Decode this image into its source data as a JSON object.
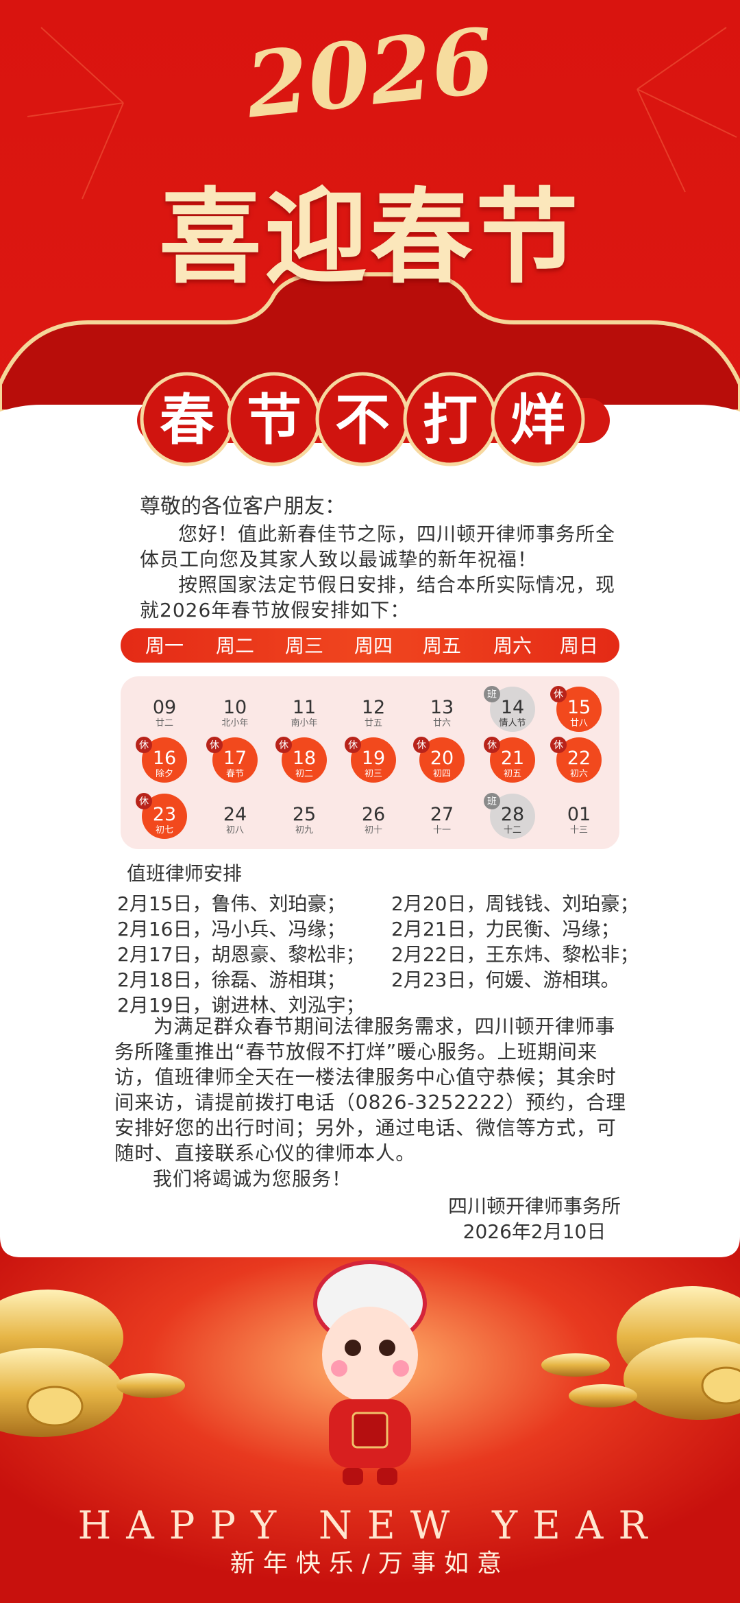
{
  "header": {
    "year": "2026",
    "title": "喜迎春节",
    "banner": [
      "春",
      "节",
      "不",
      "打",
      "烊"
    ]
  },
  "greeting": "尊敬的各位客户朋友：",
  "intro": [
    "您好！值此新春佳节之际，四川顿开律师事务所全体员工向您及其家人致以最诚挚的新年祝福！",
    "按照国家法定节假日安排，结合本所实际情况，现就2026年春节放假安排如下："
  ],
  "calendar": {
    "weekdays": [
      "周一",
      "周二",
      "周三",
      "周四",
      "周五",
      "周六",
      "周日"
    ],
    "days": [
      {
        "day": "09",
        "lunar": "廿二"
      },
      {
        "day": "10",
        "lunar": "北小年"
      },
      {
        "day": "11",
        "lunar": "南小年"
      },
      {
        "day": "12",
        "lunar": "廿五"
      },
      {
        "day": "13",
        "lunar": "廿六"
      },
      {
        "day": "14",
        "lunar": "情人节",
        "badge": "班",
        "color": "#d9d6d6",
        "badge_color": "#8a8a8a",
        "text_color": "#333333"
      },
      {
        "day": "15",
        "lunar": "廿八",
        "badge": "休",
        "color": "#f2491d",
        "badge_color": "#b8231a",
        "text_color": "#ffffff"
      },
      {
        "day": "16",
        "lunar": "除夕",
        "badge": "休",
        "color": "#f2491d",
        "badge_color": "#b8231a",
        "text_color": "#ffffff"
      },
      {
        "day": "17",
        "lunar": "春节",
        "badge": "休",
        "color": "#f2491d",
        "badge_color": "#b8231a",
        "text_color": "#ffffff"
      },
      {
        "day": "18",
        "lunar": "初二",
        "badge": "休",
        "color": "#f2491d",
        "badge_color": "#b8231a",
        "text_color": "#ffffff"
      },
      {
        "day": "19",
        "lunar": "初三",
        "badge": "休",
        "color": "#f2491d",
        "badge_color": "#b8231a",
        "text_color": "#ffffff"
      },
      {
        "day": "20",
        "lunar": "初四",
        "badge": "休",
        "color": "#f2491d",
        "badge_color": "#b8231a",
        "text_color": "#ffffff"
      },
      {
        "day": "21",
        "lunar": "初五",
        "badge": "休",
        "color": "#f2491d",
        "badge_color": "#b8231a",
        "text_color": "#ffffff"
      },
      {
        "day": "22",
        "lunar": "初六",
        "badge": "休",
        "color": "#f2491d",
        "badge_color": "#b8231a",
        "text_color": "#ffffff"
      },
      {
        "day": "23",
        "lunar": "初七",
        "badge": "休",
        "color": "#f2491d",
        "badge_color": "#b8231a",
        "text_color": "#ffffff"
      },
      {
        "day": "24",
        "lunar": "初八"
      },
      {
        "day": "25",
        "lunar": "初九"
      },
      {
        "day": "26",
        "lunar": "初十"
      },
      {
        "day": "27",
        "lunar": "十一"
      },
      {
        "day": "28",
        "lunar": "十二",
        "badge": "班",
        "color": "#d9d6d6",
        "badge_color": "#8a8a8a",
        "text_color": "#333333"
      },
      {
        "day": "01",
        "lunar": "十三"
      }
    ]
  },
  "duty": {
    "title": "值班律师安排",
    "entries": [
      "2月15日，鲁伟、刘珀豪；",
      "2月16日，冯小兵、冯缘；",
      "2月17日，胡恩豪、黎松非；",
      "2月18日，徐磊、游相琪；",
      "2月19日，谢进林、刘泓宇；",
      "2月20日，周钱钱、刘珀豪；",
      "2月21日，力民衡、冯缘；",
      "2月22日，王东炜、黎松非；",
      "2月23日，何媛、游相琪。"
    ]
  },
  "notice": "为满足群众春节期间法律服务需求，四川顿开律师事务所隆重推出“春节放假不打烊”暖心服务。上班期间来访，值班律师全天在一楼法律服务中心值守恭候；其余时间来访，请提前拨打电话（0826-3252222）预约，合理安排好您的出行时间；另外，通过电话、微信等方式，可随时、直接联系心仪的律师本人。",
  "closing": "我们将竭诚为您服务！",
  "signature": {
    "org": "四川顿开律师事务所",
    "date": "2026年2月10日"
  },
  "footer": {
    "english": "HAPPY NEW YEAR",
    "wishes": "新年快乐/万事如意"
  }
}
